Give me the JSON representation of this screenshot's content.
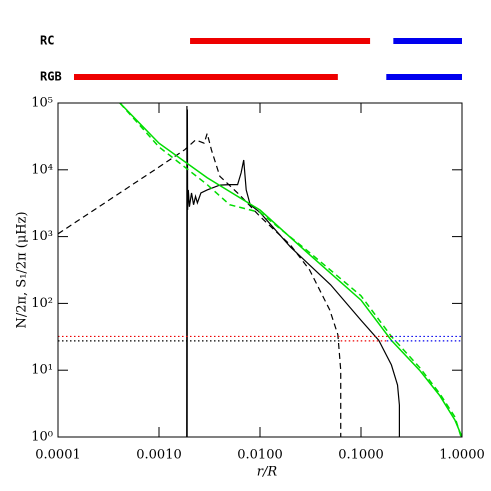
{
  "chart_data": {
    "type": "line",
    "xlabel": "r/R",
    "ylabel": "N/2π, S₁/2π (μHz)",
    "xlog": true,
    "ylog": true,
    "xlim": [
      0.0001,
      1
    ],
    "ylim": [
      1,
      100000
    ],
    "xticks": [
      0.0001,
      {
        "value": 0.001,
        "label": "0.0010"
      },
      {
        "value": 0.01,
        "label": "0.0100"
      },
      {
        "value": 0.1,
        "label": "0.1000"
      },
      {
        "value": 1,
        "label": "1.0000"
      }
    ],
    "yticks": [
      {
        "value": 1,
        "label": "10⁰"
      },
      {
        "value": 10,
        "label": "10¹"
      },
      {
        "value": 100,
        "label": "10²"
      },
      {
        "value": 1000,
        "label": "10³"
      },
      {
        "value": 10000,
        "label": "10⁴"
      },
      {
        "value": 100000,
        "label": "10⁵"
      }
    ],
    "bands": [
      {
        "label": "RC",
        "segments": [
          {
            "color": "#ee0000",
            "x": [
              0.00203,
              0.123
            ]
          },
          {
            "color": "#0000ee",
            "x": [
              0.209,
              1
            ]
          }
        ]
      },
      {
        "label": "RGB",
        "segments": [
          {
            "color": "#ee0000",
            "x": [
              0.000144,
              0.059
            ]
          },
          {
            "color": "#0000ee",
            "x": [
              0.178,
              1
            ]
          }
        ]
      }
    ],
    "series": [
      {
        "color": "#000000",
        "dash": "dashed",
        "x": [
          0.0001,
          0.0003,
          0.001,
          0.0018,
          0.0023,
          0.0028,
          0.003,
          0.0033,
          0.004,
          0.0063,
          0.01,
          0.02,
          0.031,
          0.049,
          0.059,
          0.063,
          0.063
        ],
        "values": [
          1100,
          3300,
          11000,
          20000,
          28000,
          25000,
          35000,
          20000,
          8000,
          4200,
          2000,
          750,
          316,
          80,
          34,
          10,
          1
        ]
      },
      {
        "color": "#000000",
        "dash": "solid",
        "x": [
          0.00188,
          0.00189,
          0.0019,
          0.00191,
          0.00192,
          0.00195,
          0.002,
          0.0021,
          0.0022,
          0.0023,
          0.0024,
          0.0026,
          0.003,
          0.004,
          0.005,
          0.006,
          0.0065,
          0.0069,
          0.0073,
          0.008,
          0.01,
          0.02,
          0.05,
          0.1,
          0.15,
          0.2,
          0.23,
          0.24,
          0.24
        ],
        "values": [
          1,
          90000,
          1,
          80000,
          2500,
          5000,
          2800,
          4500,
          3000,
          4000,
          3200,
          4500,
          5000,
          5900,
          6000,
          6000,
          9000,
          14000,
          5000,
          3000,
          2300,
          700,
          190,
          56,
          28,
          12,
          6,
          3,
          1
        ]
      },
      {
        "color": "#00dd00",
        "dash": "solid",
        "x": [
          0.00041,
          0.001,
          0.003,
          0.01,
          0.03,
          0.1,
          0.2,
          0.38,
          0.6,
          0.85,
          1
        ],
        "values": [
          100000,
          25000,
          7600,
          2500,
          560,
          112,
          28,
          10,
          4.2,
          1.8,
          1
        ]
      },
      {
        "color": "#00dd00",
        "dash": "dashed",
        "x": [
          0.00041,
          0.001,
          0.003,
          0.005,
          0.01,
          0.03,
          0.1,
          0.2,
          0.38,
          0.6,
          0.85,
          0.98
        ],
        "values": [
          100000,
          22000,
          6000,
          3000,
          2300,
          600,
          130,
          32,
          11,
          4.5,
          2,
          1
        ]
      },
      {
        "color": "#ee0000",
        "dash": "dotted",
        "x": [
          0.0001,
          0.2
        ],
        "values": [
          32,
          32
        ]
      },
      {
        "color": "#0000ee",
        "dash": "dotted",
        "x": [
          0.2,
          1
        ],
        "values": [
          32,
          32
        ]
      },
      {
        "color": "#000000",
        "dash": "dotted",
        "x": [
          0.0001,
          0.063
        ],
        "values": [
          27.5,
          27.5
        ]
      },
      {
        "color": "#ee0000",
        "dash": "dotted",
        "x": [
          0.063,
          0.18
        ],
        "values": [
          27.5,
          27.5
        ]
      },
      {
        "color": "#0000ee",
        "dash": "dotted",
        "x": [
          0.18,
          1
        ],
        "values": [
          27.5,
          27.5
        ]
      }
    ]
  }
}
